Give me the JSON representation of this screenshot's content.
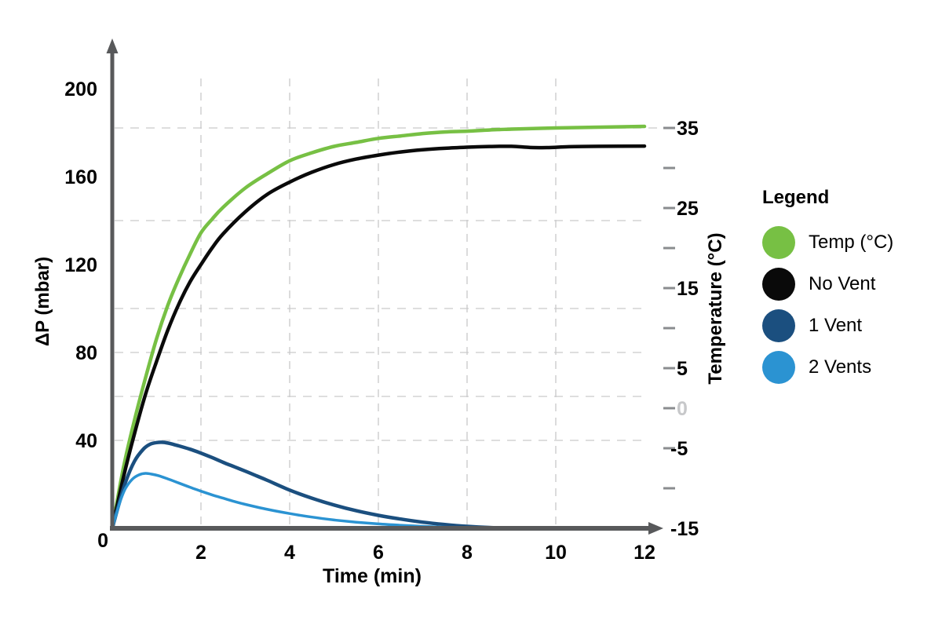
{
  "chart_data": {
    "type": "line",
    "title": "",
    "x_axis": {
      "label": "Time (min)",
      "range": [
        0,
        12
      ],
      "ticks": [
        2,
        4,
        6,
        8,
        10,
        12
      ],
      "gridlines": [
        2,
        4,
        6,
        8,
        10
      ]
    },
    "y_left": {
      "label": "ΔP (mbar)",
      "range": [
        0,
        200
      ],
      "ticks": [
        0,
        40,
        80,
        120,
        160,
        200
      ]
    },
    "y_right": {
      "label": "Temperature (°C)",
      "range": [
        -15,
        35
      ],
      "tick_step": 5,
      "tick_dashes": [
        35,
        30,
        25,
        20,
        15,
        10,
        5,
        0,
        -5,
        -10
      ],
      "tick_labels": [
        {
          "value": 35,
          "muted": false
        },
        {
          "value": 25,
          "muted": false
        },
        {
          "value": 15,
          "muted": false
        },
        {
          "value": 5,
          "muted": false
        },
        {
          "value": 0,
          "muted": true
        },
        {
          "value": -5,
          "muted": false
        },
        {
          "value": -15,
          "muted": false
        }
      ]
    },
    "h_gridlines": [
      {
        "axis": "right",
        "value": 35
      },
      {
        "axis": "left",
        "value": 140
      },
      {
        "axis": "left",
        "value": 100
      },
      {
        "axis": "left",
        "value": 80
      },
      {
        "axis": "left",
        "value": 60
      },
      {
        "axis": "left",
        "value": 40
      }
    ],
    "legend": {
      "title": "Legend",
      "position": "right"
    },
    "series": [
      {
        "name": "Temp (°C)",
        "axis": "right",
        "color": "#77C044",
        "width": 4.5,
        "points": [
          [
            0,
            -15
          ],
          [
            0.25,
            -7.5
          ],
          [
            0.5,
            -1.5
          ],
          [
            0.75,
            3.8
          ],
          [
            1,
            8.7
          ],
          [
            1.25,
            12.8
          ],
          [
            1.5,
            16.2
          ],
          [
            1.75,
            19.2
          ],
          [
            2,
            21.9
          ],
          [
            2.25,
            23.6
          ],
          [
            2.5,
            25.1
          ],
          [
            3,
            27.5
          ],
          [
            3.5,
            29.3
          ],
          [
            4,
            30.9
          ],
          [
            4.5,
            31.9
          ],
          [
            5,
            32.7
          ],
          [
            5.5,
            33.2
          ],
          [
            6,
            33.7
          ],
          [
            6.5,
            34.0
          ],
          [
            7,
            34.3
          ],
          [
            7.5,
            34.5
          ],
          [
            8,
            34.6
          ],
          [
            8.5,
            34.75
          ],
          [
            9,
            34.85
          ],
          [
            10,
            35.0
          ],
          [
            11,
            35.1
          ],
          [
            12,
            35.2
          ]
        ]
      },
      {
        "name": "No Vent",
        "axis": "left",
        "color": "#0A0A0A",
        "width": 4.5,
        "points": [
          [
            0,
            0
          ],
          [
            0.25,
            23
          ],
          [
            0.5,
            43
          ],
          [
            0.75,
            61
          ],
          [
            1,
            76
          ],
          [
            1.25,
            90
          ],
          [
            1.5,
            102
          ],
          [
            1.75,
            112
          ],
          [
            2,
            120
          ],
          [
            2.25,
            127.5
          ],
          [
            2.5,
            134
          ],
          [
            3,
            144
          ],
          [
            3.5,
            152
          ],
          [
            4,
            157.5
          ],
          [
            4.5,
            162
          ],
          [
            5,
            165.5
          ],
          [
            5.5,
            168
          ],
          [
            6,
            169.8
          ],
          [
            6.5,
            171.2
          ],
          [
            7,
            172.2
          ],
          [
            7.5,
            172.9
          ],
          [
            8,
            173.4
          ],
          [
            8.5,
            173.7
          ],
          [
            9,
            173.8
          ],
          [
            9.4,
            173.3
          ],
          [
            9.8,
            173.2
          ],
          [
            10.3,
            173.6
          ],
          [
            11,
            173.8
          ],
          [
            12,
            173.9
          ]
        ]
      },
      {
        "name": "1 Vent",
        "axis": "left",
        "color": "#1B4F7F",
        "width": 4.5,
        "points": [
          [
            0,
            0
          ],
          [
            0.15,
            11
          ],
          [
            0.3,
            21
          ],
          [
            0.5,
            30.5
          ],
          [
            0.7,
            36
          ],
          [
            0.85,
            38.2
          ],
          [
            1,
            39
          ],
          [
            1.15,
            39.1
          ],
          [
            1.3,
            38.6
          ],
          [
            1.5,
            37.5
          ],
          [
            1.75,
            36
          ],
          [
            2,
            34.2
          ],
          [
            2.25,
            32.2
          ],
          [
            2.5,
            30
          ],
          [
            2.75,
            28
          ],
          [
            3,
            26
          ],
          [
            3.25,
            23.9
          ],
          [
            3.5,
            21.8
          ],
          [
            4,
            17.4
          ],
          [
            4.5,
            13.7
          ],
          [
            5,
            10.6
          ],
          [
            5.5,
            8
          ],
          [
            6,
            5.9
          ],
          [
            6.5,
            4.2
          ],
          [
            7,
            2.8
          ],
          [
            7.5,
            1.7
          ],
          [
            8,
            0.9
          ],
          [
            8.5,
            0.35
          ],
          [
            9,
            0.05
          ]
        ]
      },
      {
        "name": "2 Vents",
        "axis": "left",
        "color": "#2B93D2",
        "width": 3.5,
        "points": [
          [
            0,
            0
          ],
          [
            0.1,
            7
          ],
          [
            0.2,
            13.5
          ],
          [
            0.3,
            18.2
          ],
          [
            0.45,
            22.3
          ],
          [
            0.6,
            24.3
          ],
          [
            0.75,
            25
          ],
          [
            0.9,
            24.6
          ],
          [
            1.05,
            23.9
          ],
          [
            1.25,
            22.5
          ],
          [
            1.5,
            20.6
          ],
          [
            1.75,
            18.7
          ],
          [
            2,
            16.9
          ],
          [
            2.25,
            15.2
          ],
          [
            2.5,
            13.7
          ],
          [
            2.75,
            12.2
          ],
          [
            3,
            10.9
          ],
          [
            3.5,
            8.6
          ],
          [
            4,
            6.7
          ],
          [
            4.5,
            5.1
          ],
          [
            5,
            3.8
          ],
          [
            5.5,
            2.8
          ],
          [
            6,
            2
          ],
          [
            6.5,
            1.4
          ],
          [
            7,
            0.9
          ],
          [
            7.5,
            0.5
          ],
          [
            8,
            0.2
          ],
          [
            8.4,
            0.05
          ]
        ]
      }
    ],
    "colors": {
      "axis": "#58595B",
      "gridline": "#CBCBCC",
      "right_tick_dash": "#8A8C8F",
      "muted_label": "#C7C8CA",
      "label": "#000000"
    }
  }
}
